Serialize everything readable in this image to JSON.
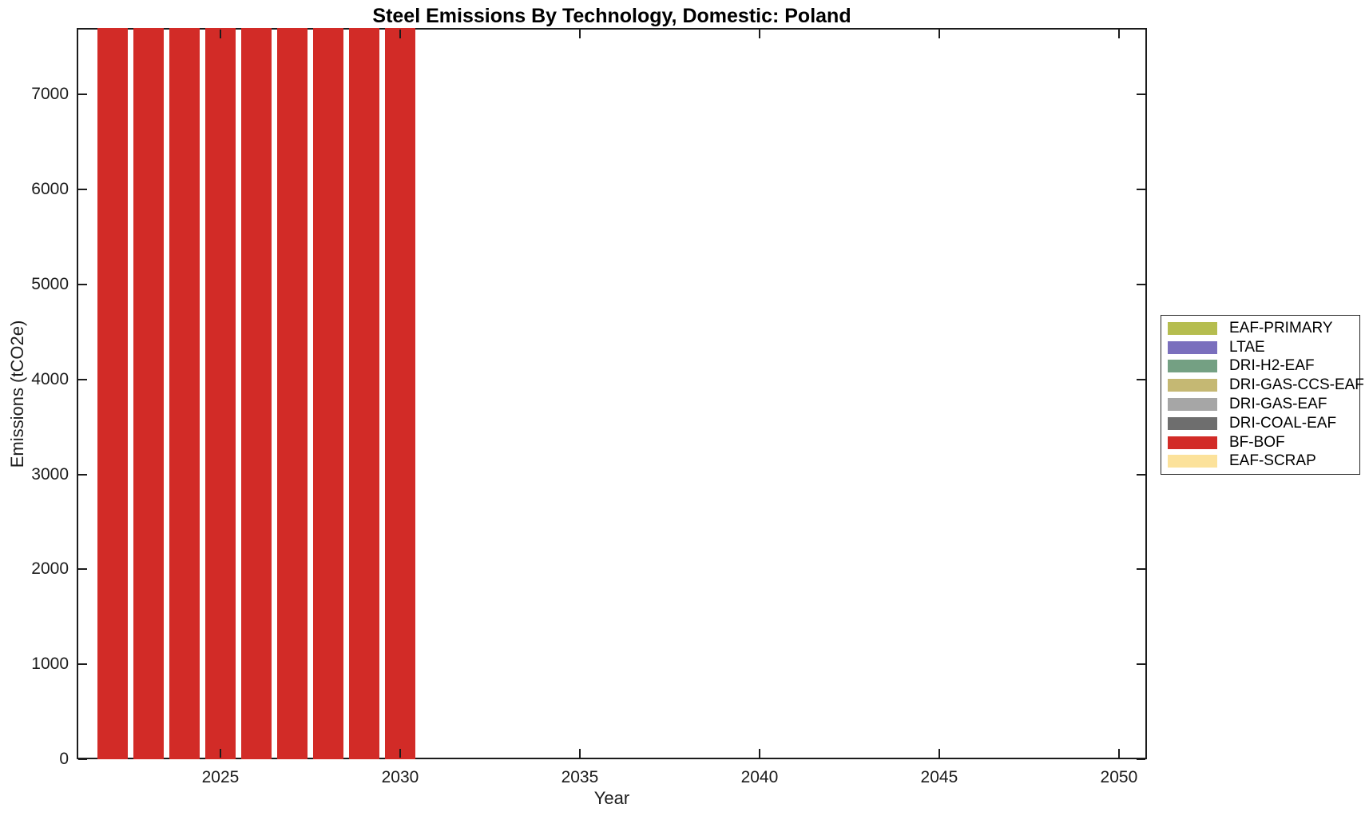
{
  "figure": {
    "background": "#ffffff",
    "axis_color": "#1c1c1c",
    "bar_color": "#d22b27"
  },
  "chart_data": {
    "type": "bar",
    "subtype": "stacked",
    "title": "Steel Emissions By Technology, Domestic: Poland",
    "xlabel": "Year",
    "ylabel": "Emissions (tCO2e)",
    "xlim": [
      2021.0,
      2050.78
    ],
    "ylim": [
      0,
      7700
    ],
    "xticks": [
      2025,
      2030,
      2035,
      2040,
      2045,
      2050
    ],
    "yticks": [
      0,
      1000,
      2000,
      3000,
      4000,
      5000,
      6000,
      7000
    ],
    "grid": false,
    "bar_width_years": 0.85,
    "categories": [
      2022,
      2023,
      2024,
      2025,
      2026,
      2027,
      2028,
      2029,
      2030
    ],
    "series": [
      {
        "name": "BF-BOF",
        "color": "#d22b27",
        "values": [
          7700,
          7700,
          7700,
          7700,
          7700,
          7700,
          7700,
          7700,
          7700
        ],
        "clipped": true
      }
    ],
    "zero_series": [
      "EAF-PRIMARY",
      "LTAE",
      "DRI-H2-EAF",
      "DRI-GAS-CCS-EAF",
      "DRI-GAS-EAF",
      "DRI-COAL-EAF",
      "EAF-SCRAP"
    ],
    "note": "BF-BOF bars for 2022-2030 extend above the top of the y-axis (clipped at ~7700 tCO2e); years 2031-2050 show no emissions.",
    "legend": {
      "position": "outside-right",
      "entries": [
        {
          "label": "EAF-PRIMARY",
          "color": "#b5bd4f"
        },
        {
          "label": "LTAE",
          "color": "#7a6fbd"
        },
        {
          "label": "DRI-H2-EAF",
          "color": "#74a083"
        },
        {
          "label": "DRI-GAS-CCS-EAF",
          "color": "#c5b873"
        },
        {
          "label": "DRI-GAS-EAF",
          "color": "#a6a6a6"
        },
        {
          "label": "DRI-COAL-EAF",
          "color": "#6e6e6e"
        },
        {
          "label": "BF-BOF",
          "color": "#d22b27"
        },
        {
          "label": "EAF-SCRAP",
          "color": "#fce29b"
        }
      ]
    }
  }
}
